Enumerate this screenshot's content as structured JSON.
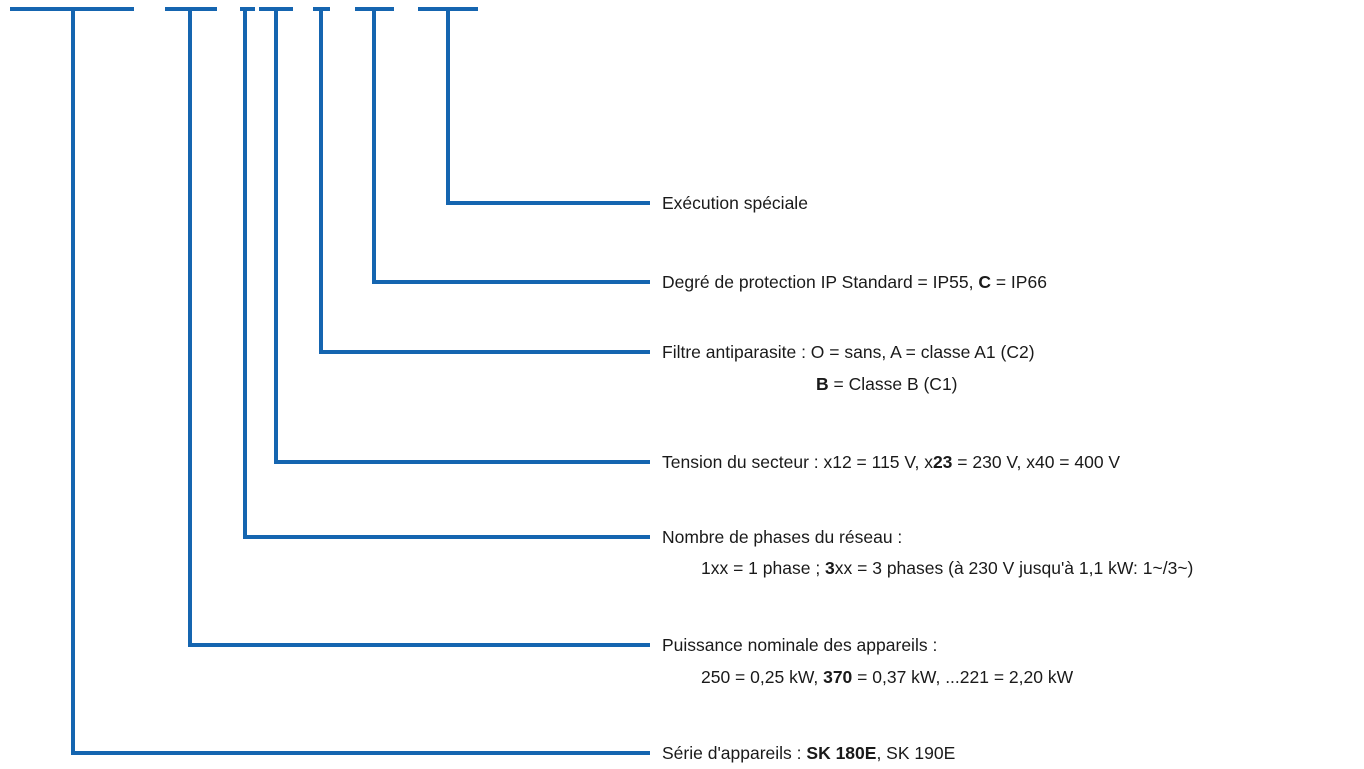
{
  "diagram": {
    "line_color": "#1565b0",
    "fields": [
      {
        "line1": [
          {
            "t": "Exécution spéciale"
          }
        ]
      },
      {
        "line1": [
          {
            "t": "Degré de protection IP   Standard = IP55, "
          },
          {
            "t": "C",
            "b": true
          },
          {
            "t": " = IP66"
          }
        ]
      },
      {
        "line1": [
          {
            "t": "Filtre antiparasite : O = sans, A = classe A1 (C2)"
          }
        ],
        "line2": [
          {
            "t": "B",
            "b": true
          },
          {
            "t": " = Classe B (C1)"
          }
        ]
      },
      {
        "line1": [
          {
            "t": "Tension du secteur : x12 = 115 V, x"
          },
          {
            "t": "23",
            "b": true
          },
          {
            "t": " = 230 V, x40 = 400 V"
          }
        ]
      },
      {
        "line1": [
          {
            "t": "Nombre de phases du réseau :"
          }
        ],
        "line2": [
          {
            "t": "1xx = 1 phase ; "
          },
          {
            "t": "3",
            "b": true
          },
          {
            "t": "xx = 3 phases (à 230 V jusqu'à 1,1 kW: 1~/3~)"
          }
        ]
      },
      {
        "line1": [
          {
            "t": "Puissance nominale des appareils :"
          }
        ],
        "line2": [
          {
            "t": "250 = 0,25 kW, "
          },
          {
            "t": "370",
            "b": true
          },
          {
            "t": " = 0,37 kW,  ...221 = 2,20 kW"
          }
        ]
      },
      {
        "line1": [
          {
            "t": "Série d'appareils : "
          },
          {
            "t": "SK 180E",
            "b": true
          },
          {
            "t": ", SK 190E"
          }
        ]
      }
    ]
  }
}
